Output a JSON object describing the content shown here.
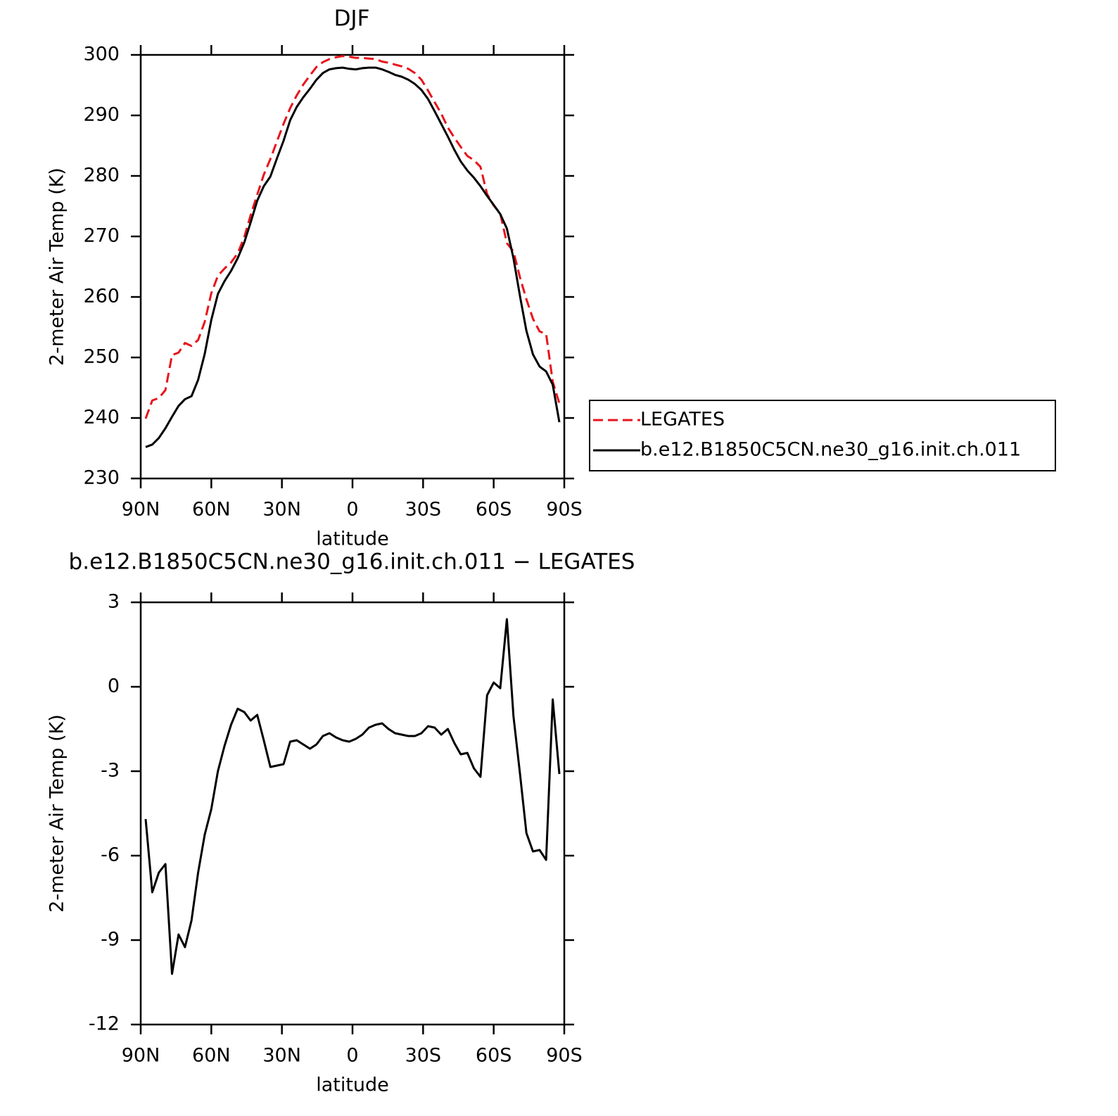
{
  "chart_data": [
    {
      "type": "line",
      "title": "DJF",
      "xlabel": "latitude",
      "ylabel": "2-meter Air Temp (K)",
      "x": [
        87.9,
        85.1,
        82.3,
        79.5,
        76.7,
        73.9,
        71.2,
        68.4,
        65.6,
        62.8,
        60.0,
        57.2,
        54.4,
        51.6,
        48.8,
        46.0,
        43.3,
        40.5,
        37.7,
        34.9,
        32.1,
        29.3,
        26.5,
        23.7,
        20.9,
        18.1,
        15.3,
        12.6,
        9.8,
        7.0,
        4.2,
        1.4,
        -1.4,
        -4.2,
        -7.0,
        -9.8,
        -12.6,
        -15.3,
        -18.1,
        -20.9,
        -23.7,
        -26.5,
        -29.3,
        -32.1,
        -34.9,
        -37.7,
        -40.5,
        -43.3,
        -46.0,
        -48.8,
        -51.6,
        -54.4,
        -57.2,
        -60.0,
        -62.8,
        -65.6,
        -68.4,
        -71.2,
        -73.9,
        -76.7,
        -79.5,
        -82.3,
        -85.1,
        -87.9
      ],
      "series": [
        {
          "name": "LEGATES",
          "color": "#e8141c",
          "style": "dashed",
          "values": [
            239.9,
            242.9,
            243.3,
            244.6,
            250.4,
            250.8,
            252.4,
            251.9,
            252.9,
            255.9,
            260.6,
            263.5,
            264.7,
            265.7,
            267.2,
            269.9,
            273.5,
            276.9,
            280.2,
            282.8,
            285.7,
            288.6,
            291.2,
            293.3,
            295.1,
            296.6,
            298.0,
            298.8,
            299.3,
            299.6,
            299.8,
            299.7,
            299.5,
            299.5,
            299.4,
            299.3,
            298.9,
            298.7,
            298.4,
            298.1,
            297.7,
            297.0,
            295.9,
            294.1,
            292.2,
            290.3,
            288.0,
            286.3,
            284.8,
            283.3,
            282.6,
            281.5,
            277.0,
            275.1,
            273.8,
            268.9,
            267.5,
            263.2,
            259.6,
            256.4,
            254.3,
            253.9,
            246.0,
            242.4
          ]
        },
        {
          "name": "b.e12.B1850C5CN.ne30_g16.init.ch.011",
          "color": "#000000",
          "style": "solid",
          "values": [
            235.2,
            235.6,
            236.7,
            238.3,
            240.2,
            242.0,
            243.1,
            243.6,
            246.3,
            250.6,
            256.2,
            260.5,
            262.6,
            264.3,
            266.4,
            269.0,
            272.3,
            275.9,
            278.3,
            279.9,
            282.9,
            285.8,
            289.2,
            291.4,
            293.0,
            294.4,
            295.9,
            297.0,
            297.6,
            297.8,
            297.9,
            297.7,
            297.6,
            297.8,
            297.9,
            297.9,
            297.6,
            297.2,
            296.7,
            296.4,
            295.9,
            295.2,
            294.2,
            292.7,
            290.7,
            288.6,
            286.5,
            284.3,
            282.4,
            280.9,
            279.7,
            278.3,
            276.7,
            275.2,
            273.7,
            271.3,
            266.4,
            260.1,
            254.4,
            250.5,
            248.5,
            247.7,
            245.5,
            239.3
          ]
        }
      ],
      "xlim": [
        90,
        -90
      ],
      "xticks": [
        {
          "value": 90,
          "label": "90N"
        },
        {
          "value": 60,
          "label": "60N"
        },
        {
          "value": 30,
          "label": "30N"
        },
        0,
        {
          "value": -30,
          "label": "30S"
        },
        {
          "value": -60,
          "label": "60S"
        },
        {
          "value": -90,
          "label": "90S"
        }
      ],
      "ylim": [
        230,
        300
      ],
      "yticks": [
        230,
        240,
        250,
        260,
        270,
        280,
        290,
        300
      ],
      "legend": "outside-right"
    },
    {
      "type": "line",
      "title": "b.e12.B1850C5CN.ne30_g16.init.ch.011 − LEGATES",
      "xlabel": "latitude",
      "ylabel": "2-meter Air Temp (K)",
      "x": [
        87.9,
        85.1,
        82.3,
        79.5,
        76.7,
        73.9,
        71.2,
        68.4,
        65.6,
        62.8,
        60.0,
        57.2,
        54.4,
        51.6,
        48.8,
        46.0,
        43.3,
        40.5,
        37.7,
        34.9,
        32.1,
        29.3,
        26.5,
        23.7,
        20.9,
        18.1,
        15.3,
        12.6,
        9.8,
        7.0,
        4.2,
        1.4,
        -1.4,
        -4.2,
        -7.0,
        -9.8,
        -12.6,
        -15.3,
        -18.1,
        -20.9,
        -23.7,
        -26.5,
        -29.3,
        -32.1,
        -34.9,
        -37.7,
        -40.5,
        -43.3,
        -46.0,
        -48.8,
        -51.6,
        -54.4,
        -57.2,
        -60.0,
        -62.8,
        -65.6,
        -68.4,
        -71.2,
        -73.9,
        -76.7,
        -79.5,
        -82.3,
        -85.1,
        -87.9
      ],
      "series": [
        {
          "color": "#000000",
          "style": "solid",
          "values": [
            -4.7,
            -7.3,
            -6.6,
            -6.3,
            -10.2,
            -8.8,
            -9.25,
            -8.3,
            -6.6,
            -5.25,
            -4.35,
            -3.0,
            -2.1,
            -1.35,
            -0.78,
            -0.9,
            -1.2,
            -1.0,
            -1.9,
            -2.85,
            -2.8,
            -2.75,
            -1.95,
            -1.9,
            -2.05,
            -2.2,
            -2.05,
            -1.75,
            -1.65,
            -1.8,
            -1.9,
            -1.95,
            -1.85,
            -1.7,
            -1.45,
            -1.35,
            -1.3,
            -1.5,
            -1.65,
            -1.7,
            -1.75,
            -1.75,
            -1.65,
            -1.4,
            -1.45,
            -1.7,
            -1.5,
            -2.0,
            -2.4,
            -2.35,
            -2.9,
            -3.2,
            -0.3,
            0.15,
            -0.05,
            2.4,
            -1.05,
            -3.1,
            -5.2,
            -5.85,
            -5.8,
            -6.15,
            -0.45,
            -3.1
          ]
        }
      ],
      "xlim": [
        90,
        -90
      ],
      "xticks": [
        {
          "value": 90,
          "label": "90N"
        },
        {
          "value": 60,
          "label": "60N"
        },
        {
          "value": 30,
          "label": "30N"
        },
        0,
        {
          "value": -30,
          "label": "30S"
        },
        {
          "value": -60,
          "label": "60S"
        },
        {
          "value": -90,
          "label": "90S"
        }
      ],
      "ylim": [
        -12,
        3
      ],
      "yticks": [
        -12,
        -9,
        -6,
        -3,
        0,
        3
      ]
    }
  ]
}
